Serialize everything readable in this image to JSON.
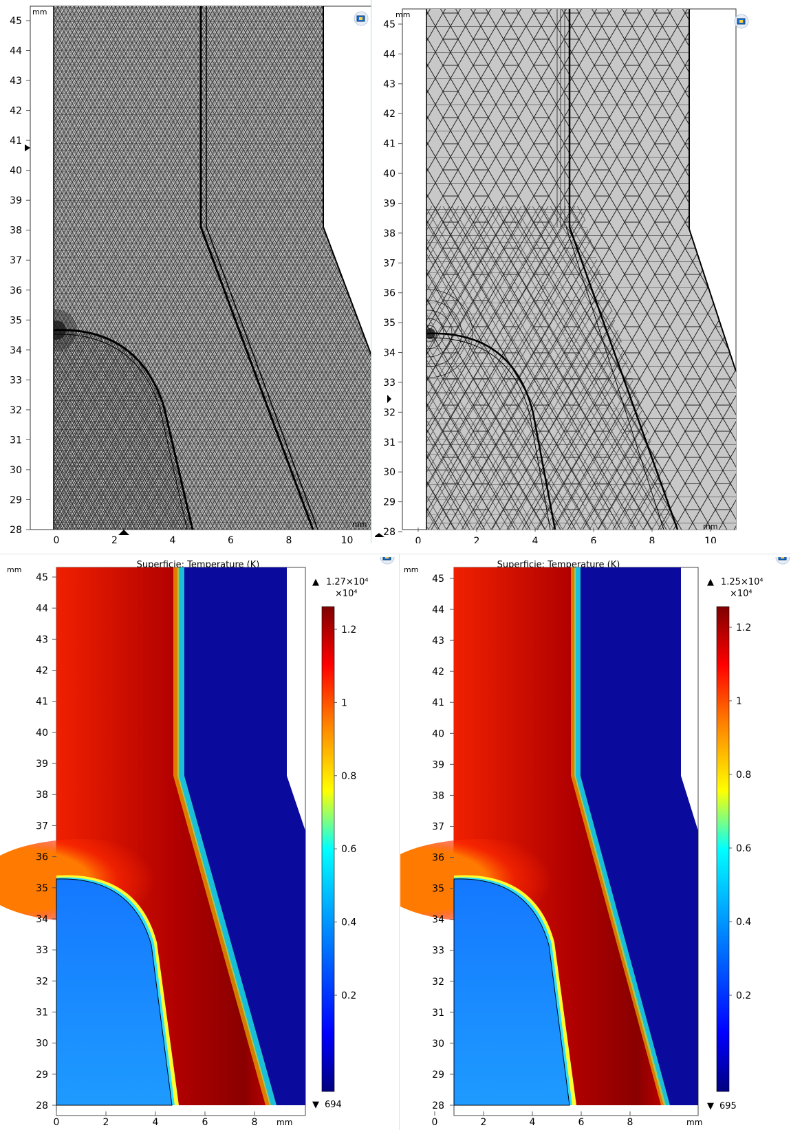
{
  "panels": {
    "mesh_fine": {
      "unit_top": "mm",
      "unit_bottom": "mm",
      "y_ticks": [
        "45",
        "44",
        "43",
        "42",
        "41",
        "40",
        "39",
        "38",
        "37",
        "36",
        "35",
        "34",
        "33",
        "32",
        "31",
        "30",
        "29",
        "28"
      ],
      "x_ticks": [
        "0",
        "2",
        "4",
        "6",
        "8",
        "10"
      ],
      "view_icon": "camera-view-icon"
    },
    "mesh_coarse": {
      "unit_top": "mm",
      "unit_bottom": "mm",
      "y_ticks": [
        "45",
        "44",
        "43",
        "42",
        "41",
        "40",
        "39",
        "38",
        "37",
        "36",
        "35",
        "34",
        "33",
        "32",
        "31",
        "30",
        "29",
        "28"
      ],
      "x_ticks": [
        "0",
        "2",
        "4",
        "6",
        "8",
        "10"
      ],
      "view_icon": "camera-view-icon"
    },
    "temp_left": {
      "title": "Superficie: Temperature (K)",
      "unit_y": "mm",
      "unit_x": "mm",
      "y_ticks": [
        "45",
        "44",
        "43",
        "42",
        "41",
        "40",
        "39",
        "38",
        "37",
        "36",
        "35",
        "34",
        "33",
        "32",
        "31",
        "30",
        "29",
        "28"
      ],
      "x_ticks": [
        "0",
        "2",
        "4",
        "6",
        "8"
      ],
      "max_label": "1.27×10⁴",
      "scale_label": "×10⁴",
      "colorbar_ticks": [
        "1.2",
        "1",
        "0.8",
        "0.6",
        "0.4",
        "0.2"
      ],
      "min_label": "694",
      "view_icon": "camera-view-icon"
    },
    "temp_right": {
      "title": "Superficie: Temperature (K)",
      "unit_y": "mm",
      "unit_x": "mm",
      "y_ticks": [
        "45",
        "44",
        "43",
        "42",
        "41",
        "40",
        "39",
        "38",
        "37",
        "36",
        "35",
        "34",
        "33",
        "32",
        "31",
        "30",
        "29",
        "28"
      ],
      "x_ticks": [
        "0",
        "2",
        "4",
        "6",
        "8"
      ],
      "max_label": "1.25×10⁴",
      "scale_label": "×10⁴",
      "colorbar_ticks": [
        "1.2",
        "1",
        "0.8",
        "0.6",
        "0.4",
        "0.2"
      ],
      "min_label": "695",
      "view_icon": "camera-view-icon"
    }
  },
  "colors": {
    "mesh_fill": "#c8c8c8",
    "cold": "#0a0a9c",
    "hot": "#8a0000",
    "cathode": "#1e8cff"
  }
}
